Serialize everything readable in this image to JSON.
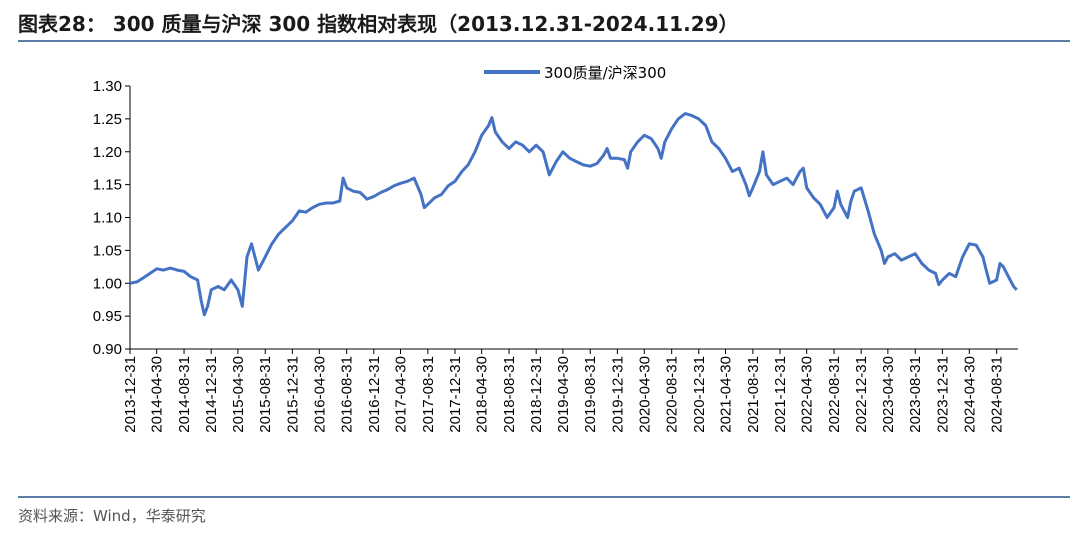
{
  "figure": {
    "title": "图表28： 300 质量与沪深 300 指数相对表现（2013.12.31-2024.11.29）",
    "source": "资料来源：Wind，华泰研究"
  },
  "colors": {
    "series": "#4472c4",
    "rule": "#5b7ea8"
  },
  "chart_data": {
    "type": "line",
    "title": "",
    "xlabel": "",
    "ylabel": "",
    "ylim": [
      0.9,
      1.3
    ],
    "yticks": [
      "0.90",
      "0.95",
      "1.00",
      "1.05",
      "1.10",
      "1.15",
      "1.20",
      "1.25",
      "1.30"
    ],
    "xticks": [
      "2013-12-31",
      "2014-04-30",
      "2014-08-31",
      "2014-12-31",
      "2015-04-30",
      "2015-08-31",
      "2015-12-31",
      "2016-04-30",
      "2016-08-31",
      "2016-12-31",
      "2017-04-30",
      "2017-08-31",
      "2017-12-31",
      "2018-04-30",
      "2018-08-31",
      "2018-12-31",
      "2019-04-30",
      "2019-08-31",
      "2019-12-31",
      "2020-04-30",
      "2020-08-31",
      "2020-12-31",
      "2021-04-30",
      "2021-08-31",
      "2021-12-31",
      "2022-04-30",
      "2022-08-31",
      "2022-12-31",
      "2023-04-30",
      "2023-08-31",
      "2023-12-31",
      "2024-04-30",
      "2024-08-31"
    ],
    "grid": false,
    "legend_position": "top-center",
    "series": [
      {
        "name": "300质量/沪深300",
        "points": [
          [
            "2013-12-31",
            1.0
          ],
          [
            "2014-01-31",
            1.002
          ],
          [
            "2014-02-28",
            1.008
          ],
          [
            "2014-03-31",
            1.015
          ],
          [
            "2014-04-30",
            1.022
          ],
          [
            "2014-05-31",
            1.02
          ],
          [
            "2014-06-30",
            1.023
          ],
          [
            "2014-07-31",
            1.02
          ],
          [
            "2014-08-31",
            1.018
          ],
          [
            "2014-09-30",
            1.01
          ],
          [
            "2014-10-31",
            1.005
          ],
          [
            "2014-11-15",
            0.975
          ],
          [
            "2014-11-30",
            0.952
          ],
          [
            "2014-12-15",
            0.965
          ],
          [
            "2014-12-31",
            0.99
          ],
          [
            "2015-01-31",
            0.995
          ],
          [
            "2015-02-28",
            0.99
          ],
          [
            "2015-03-31",
            1.005
          ],
          [
            "2015-04-30",
            0.99
          ],
          [
            "2015-05-20",
            0.965
          ],
          [
            "2015-06-10",
            1.04
          ],
          [
            "2015-06-30",
            1.06
          ],
          [
            "2015-07-31",
            1.02
          ],
          [
            "2015-08-31",
            1.04
          ],
          [
            "2015-09-30",
            1.06
          ],
          [
            "2015-10-31",
            1.075
          ],
          [
            "2015-11-30",
            1.085
          ],
          [
            "2015-12-31",
            1.095
          ],
          [
            "2016-01-31",
            1.11
          ],
          [
            "2016-02-29",
            1.108
          ],
          [
            "2016-03-31",
            1.115
          ],
          [
            "2016-04-30",
            1.12
          ],
          [
            "2016-05-31",
            1.122
          ],
          [
            "2016-06-30",
            1.122
          ],
          [
            "2016-07-31",
            1.125
          ],
          [
            "2016-08-15",
            1.16
          ],
          [
            "2016-08-31",
            1.145
          ],
          [
            "2016-09-30",
            1.14
          ],
          [
            "2016-10-31",
            1.138
          ],
          [
            "2016-11-30",
            1.128
          ],
          [
            "2016-12-31",
            1.132
          ],
          [
            "2017-01-31",
            1.138
          ],
          [
            "2017-02-28",
            1.142
          ],
          [
            "2017-03-31",
            1.148
          ],
          [
            "2017-04-30",
            1.152
          ],
          [
            "2017-05-31",
            1.155
          ],
          [
            "2017-06-30",
            1.16
          ],
          [
            "2017-07-31",
            1.135
          ],
          [
            "2017-08-15",
            1.115
          ],
          [
            "2017-08-31",
            1.12
          ],
          [
            "2017-09-30",
            1.13
          ],
          [
            "2017-10-31",
            1.135
          ],
          [
            "2017-11-30",
            1.148
          ],
          [
            "2017-12-31",
            1.155
          ],
          [
            "2018-01-31",
            1.17
          ],
          [
            "2018-02-28",
            1.18
          ],
          [
            "2018-03-31",
            1.2
          ],
          [
            "2018-04-30",
            1.225
          ],
          [
            "2018-05-31",
            1.24
          ],
          [
            "2018-06-15",
            1.252
          ],
          [
            "2018-06-30",
            1.23
          ],
          [
            "2018-07-31",
            1.215
          ],
          [
            "2018-08-31",
            1.205
          ],
          [
            "2018-09-30",
            1.215
          ],
          [
            "2018-10-31",
            1.21
          ],
          [
            "2018-11-30",
            1.2
          ],
          [
            "2018-12-31",
            1.21
          ],
          [
            "2019-01-31",
            1.2
          ],
          [
            "2019-02-28",
            1.165
          ],
          [
            "2019-03-31",
            1.185
          ],
          [
            "2019-04-30",
            1.2
          ],
          [
            "2019-05-31",
            1.19
          ],
          [
            "2019-06-30",
            1.185
          ],
          [
            "2019-07-31",
            1.18
          ],
          [
            "2019-08-31",
            1.178
          ],
          [
            "2019-09-30",
            1.182
          ],
          [
            "2019-10-31",
            1.195
          ],
          [
            "2019-11-15",
            1.205
          ],
          [
            "2019-11-30",
            1.19
          ],
          [
            "2019-12-31",
            1.19
          ],
          [
            "2020-01-31",
            1.188
          ],
          [
            "2020-02-15",
            1.175
          ],
          [
            "2020-02-29",
            1.2
          ],
          [
            "2020-03-31",
            1.215
          ],
          [
            "2020-04-30",
            1.225
          ],
          [
            "2020-05-31",
            1.22
          ],
          [
            "2020-06-30",
            1.205
          ],
          [
            "2020-07-15",
            1.19
          ],
          [
            "2020-07-31",
            1.215
          ],
          [
            "2020-08-31",
            1.235
          ],
          [
            "2020-09-30",
            1.25
          ],
          [
            "2020-10-31",
            1.258
          ],
          [
            "2020-11-30",
            1.255
          ],
          [
            "2020-12-31",
            1.25
          ],
          [
            "2021-01-31",
            1.24
          ],
          [
            "2021-02-28",
            1.215
          ],
          [
            "2021-03-31",
            1.205
          ],
          [
            "2021-04-30",
            1.19
          ],
          [
            "2021-05-31",
            1.17
          ],
          [
            "2021-06-30",
            1.175
          ],
          [
            "2021-07-31",
            1.15
          ],
          [
            "2021-08-15",
            1.133
          ],
          [
            "2021-08-31",
            1.145
          ],
          [
            "2021-09-30",
            1.17
          ],
          [
            "2021-10-15",
            1.2
          ],
          [
            "2021-10-31",
            1.165
          ],
          [
            "2021-11-30",
            1.15
          ],
          [
            "2021-12-31",
            1.155
          ],
          [
            "2022-01-31",
            1.16
          ],
          [
            "2022-02-28",
            1.15
          ],
          [
            "2022-03-31",
            1.17
          ],
          [
            "2022-04-15",
            1.175
          ],
          [
            "2022-04-30",
            1.145
          ],
          [
            "2022-05-31",
            1.13
          ],
          [
            "2022-06-30",
            1.12
          ],
          [
            "2022-07-31",
            1.1
          ],
          [
            "2022-08-31",
            1.115
          ],
          [
            "2022-09-15",
            1.14
          ],
          [
            "2022-09-30",
            1.12
          ],
          [
            "2022-10-31",
            1.1
          ],
          [
            "2022-11-15",
            1.125
          ],
          [
            "2022-11-30",
            1.14
          ],
          [
            "2022-12-31",
            1.145
          ],
          [
            "2023-01-31",
            1.11
          ],
          [
            "2023-02-28",
            1.075
          ],
          [
            "2023-03-31",
            1.05
          ],
          [
            "2023-04-15",
            1.03
          ],
          [
            "2023-04-30",
            1.04
          ],
          [
            "2023-05-31",
            1.045
          ],
          [
            "2023-06-30",
            1.035
          ],
          [
            "2023-07-31",
            1.04
          ],
          [
            "2023-08-31",
            1.045
          ],
          [
            "2023-09-30",
            1.03
          ],
          [
            "2023-10-31",
            1.02
          ],
          [
            "2023-11-30",
            1.015
          ],
          [
            "2023-12-15",
            0.998
          ],
          [
            "2023-12-31",
            1.005
          ],
          [
            "2024-01-31",
            1.015
          ],
          [
            "2024-02-29",
            1.01
          ],
          [
            "2024-03-31",
            1.04
          ],
          [
            "2024-04-30",
            1.06
          ],
          [
            "2024-05-31",
            1.058
          ],
          [
            "2024-06-30",
            1.04
          ],
          [
            "2024-07-15",
            1.02
          ],
          [
            "2024-07-31",
            1.0
          ],
          [
            "2024-08-31",
            1.005
          ],
          [
            "2024-09-15",
            1.03
          ],
          [
            "2024-09-30",
            1.025
          ],
          [
            "2024-10-31",
            1.005
          ],
          [
            "2024-11-15",
            0.995
          ],
          [
            "2024-11-29",
            0.99
          ]
        ]
      }
    ]
  }
}
